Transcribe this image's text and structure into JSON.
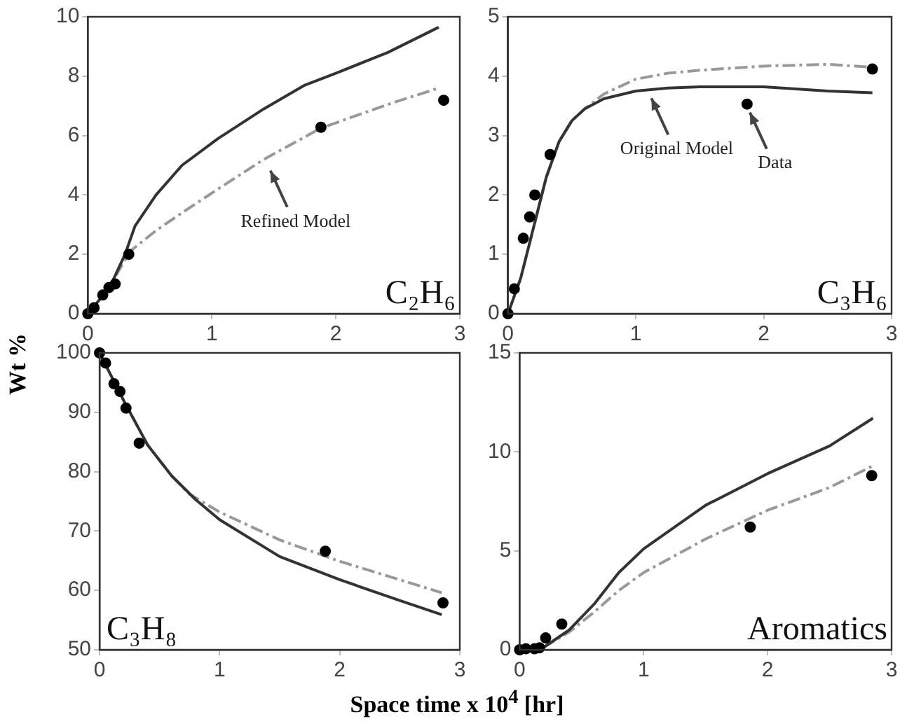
{
  "chart_data": [
    {
      "type": "line",
      "title": "C₂H₆",
      "ylabel": "Wt %",
      "xlim": [
        0,
        3
      ],
      "xticks": [
        0,
        1,
        2,
        3
      ],
      "ylim": [
        0,
        10
      ],
      "yticks": [
        0,
        2,
        4,
        6,
        8,
        10
      ],
      "annotations": [
        {
          "text": "Refined Model",
          "x": 1.45,
          "y": 5.1
        }
      ],
      "series": [
        {
          "color": "#333333",
          "line_style": "solid",
          "x": [
            0,
            0.1,
            0.2,
            0.3,
            0.38,
            0.55,
            0.76,
            1.05,
            1.42,
            1.75,
            2.0,
            2.42,
            2.83
          ],
          "values": [
            0,
            0.5,
            1.1,
            2.0,
            2.95,
            4.0,
            5.0,
            5.9,
            6.9,
            7.7,
            8.1,
            8.8,
            9.65
          ]
        },
        {
          "color": "#999999",
          "line_style": "dashed",
          "x": [
            0,
            0.1,
            0.2,
            0.34,
            0.55,
            0.76,
            1.05,
            1.42,
            1.88,
            2.42,
            2.83
          ],
          "values": [
            0,
            0.5,
            1.1,
            2.1,
            2.8,
            3.4,
            4.2,
            5.2,
            6.25,
            7.05,
            7.6
          ]
        },
        {
          "type": "scatter",
          "color": "#000000",
          "marker": "circle",
          "x": [
            0,
            0.05,
            0.12,
            0.17,
            0.22,
            0.33,
            1.88,
            2.87
          ],
          "values": [
            0,
            0.2,
            0.63,
            0.88,
            1.0,
            2.0,
            6.28,
            7.19
          ]
        }
      ]
    },
    {
      "type": "line",
      "title": "C₃H₆",
      "xlim": [
        0,
        3
      ],
      "xticks": [
        0,
        1,
        2,
        3
      ],
      "ylim": [
        0,
        5
      ],
      "yticks": [
        0,
        1,
        2,
        3,
        4,
        5
      ],
      "annotations": [
        {
          "text": "Original Model",
          "x": 1.1,
          "y": 3.77
        },
        {
          "text": "Data",
          "x": 1.87,
          "y": 3.53
        }
      ],
      "series": [
        {
          "color": "#333333",
          "line_style": "solid",
          "x": [
            0,
            0.1,
            0.2,
            0.3,
            0.4,
            0.5,
            0.6,
            0.75,
            1.0,
            1.25,
            1.5,
            2.0,
            2.5,
            2.85
          ],
          "values": [
            0,
            0.6,
            1.45,
            2.3,
            2.9,
            3.25,
            3.45,
            3.62,
            3.75,
            3.8,
            3.82,
            3.82,
            3.75,
            3.72
          ]
        },
        {
          "color": "#999999",
          "line_style": "dashed",
          "x": [
            0,
            0.1,
            0.2,
            0.3,
            0.4,
            0.5,
            0.6,
            0.75,
            1.0,
            1.25,
            1.5,
            2.0,
            2.5,
            2.85
          ],
          "values": [
            0,
            0.6,
            1.45,
            2.3,
            2.9,
            3.25,
            3.45,
            3.7,
            3.95,
            4.05,
            4.1,
            4.17,
            4.2,
            4.15
          ]
        },
        {
          "type": "scatter",
          "color": "#000000",
          "marker": "circle",
          "x": [
            0,
            0.05,
            0.12,
            0.17,
            0.21,
            0.33,
            1.87,
            2.85
          ],
          "values": [
            0,
            0.42,
            1.27,
            1.63,
            2.0,
            2.68,
            3.53,
            4.12
          ]
        }
      ]
    },
    {
      "type": "line",
      "title": "C₃H₈",
      "xlabel": "Space time x 10$^{4}$ [hr]",
      "xlim": [
        0,
        3
      ],
      "xticks": [
        0,
        1,
        2,
        3
      ],
      "ylim": [
        50,
        100
      ],
      "yticks": [
        50,
        60,
        70,
        80,
        90,
        100
      ],
      "series": [
        {
          "color": "#333333",
          "line_style": "solid",
          "x": [
            0,
            0.2,
            0.4,
            0.6,
            0.8,
            1.0,
            1.5,
            2.0,
            2.5,
            2.85
          ],
          "values": [
            100,
            92,
            84.5,
            79.3,
            75.3,
            71.9,
            65.7,
            61.8,
            58.3,
            55.9
          ]
        },
        {
          "color": "#999999",
          "line_style": "dashed",
          "x": [
            0,
            0.2,
            0.4,
            0.6,
            0.75,
            1.0,
            1.5,
            2.0,
            2.5,
            2.85
          ],
          "values": [
            100,
            92,
            84.5,
            79.3,
            76.2,
            73.2,
            68.5,
            64.9,
            61.8,
            59.6
          ]
        },
        {
          "type": "scatter",
          "color": "#000000",
          "marker": "circle",
          "x": [
            0,
            0.05,
            0.12,
            0.17,
            0.22,
            0.33,
            1.88,
            2.86
          ],
          "values": [
            100,
            98.3,
            94.8,
            93.5,
            90.7,
            84.8,
            66.6,
            57.9
          ]
        }
      ]
    },
    {
      "type": "line",
      "title": "Aromatics",
      "xlim": [
        0,
        3
      ],
      "xticks": [
        0,
        1,
        2,
        3
      ],
      "ylim": [
        0,
        15
      ],
      "yticks": [
        0,
        5,
        10,
        15
      ],
      "series": [
        {
          "color": "#333333",
          "line_style": "solid",
          "x": [
            0,
            0.2,
            0.4,
            0.6,
            0.8,
            1.0,
            1.5,
            2.0,
            2.5,
            2.85
          ],
          "values": [
            0,
            0.15,
            1.0,
            2.3,
            3.9,
            5.1,
            7.3,
            8.9,
            10.3,
            11.7
          ]
        },
        {
          "color": "#999999",
          "line_style": "dashed",
          "x": [
            0,
            0.2,
            0.4,
            0.6,
            0.8,
            1.0,
            1.5,
            2.0,
            2.5,
            2.85
          ],
          "values": [
            0,
            0.15,
            0.9,
            1.9,
            3.0,
            3.9,
            5.6,
            7.05,
            8.2,
            9.3
          ]
        },
        {
          "type": "scatter",
          "color": "#000000",
          "marker": "circle",
          "x": [
            0,
            0.05,
            0.12,
            0.16,
            0.21,
            0.34,
            1.86,
            2.84
          ],
          "values": [
            0,
            0.05,
            0.05,
            0.1,
            0.6,
            1.3,
            6.2,
            8.8
          ]
        }
      ]
    }
  ]
}
